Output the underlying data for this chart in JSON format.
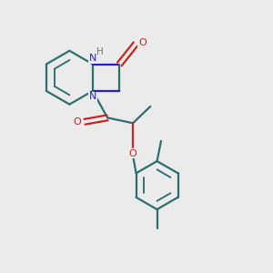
{
  "bg_color": "#ebebeb",
  "bond_color": "#2d6e6e",
  "nitrogen_color": "#2222cc",
  "oxygen_color": "#cc2222",
  "hydrogen_color": "#777777",
  "bond_width": 1.6,
  "figsize": [
    3.0,
    3.0
  ],
  "dpi": 100,
  "xlim": [
    0,
    10
  ],
  "ylim": [
    0,
    10
  ]
}
